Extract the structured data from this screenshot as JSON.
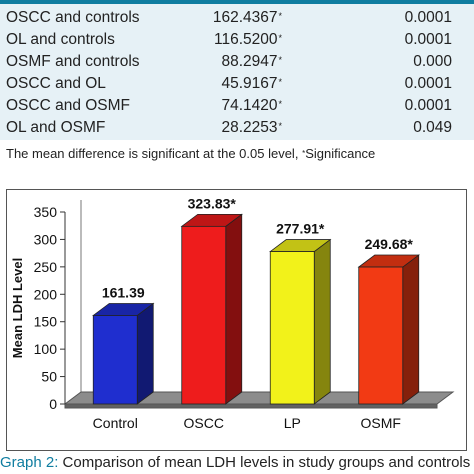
{
  "table": {
    "rows": [
      {
        "comparison": "OSCC and controls",
        "mean_difference": "162.4367",
        "significant": true,
        "p_value": "0.0001"
      },
      {
        "comparison": "OL and controls",
        "mean_difference": "116.5200",
        "significant": true,
        "p_value": "0.0001"
      },
      {
        "comparison": "OSMF and controls",
        "mean_difference": "88.2947",
        "significant": true,
        "p_value": "0.000"
      },
      {
        "comparison": "OSCC and OL",
        "mean_difference": "45.9167",
        "significant": true,
        "p_value": "0.0001"
      },
      {
        "comparison": "OSCC and OSMF",
        "mean_difference": "74.1420",
        "significant": true,
        "p_value": "0.0001"
      },
      {
        "comparison": "OL and OSMF",
        "mean_difference": "28.2253",
        "significant": true,
        "p_value": "0.049"
      }
    ],
    "significance_mark": "*",
    "note_text": "The mean difference is significant at the 0.05 level,",
    "note_mark": "*",
    "note_suffix": "Significance",
    "colors": {
      "band": "#e6f1f6",
      "accent": "#0f7da0"
    }
  },
  "chart_data": {
    "type": "bar",
    "categories": [
      "Control",
      "OSCC",
      "LP",
      "OSMF"
    ],
    "values": [
      161.39,
      323.83,
      277.91,
      249.68
    ],
    "data_labels": [
      "161.39",
      "323.83*",
      "277.91*",
      "249.68*"
    ],
    "title": "",
    "xlabel": "",
    "ylabel": "Mean LDH Level",
    "ylim": [
      0,
      350
    ],
    "yticks": [
      0,
      50,
      100,
      150,
      200,
      250,
      300,
      350
    ],
    "grid": false,
    "legend": "none",
    "style": "3d",
    "colors": [
      "#1f2ecf",
      "#ee1c1c",
      "#f2f21a",
      "#f23a14"
    ],
    "floor_color": "#8c8c8c"
  },
  "caption": {
    "label": "Graph 2:",
    "text": "Comparison of mean LDH levels in study groups and controls"
  }
}
